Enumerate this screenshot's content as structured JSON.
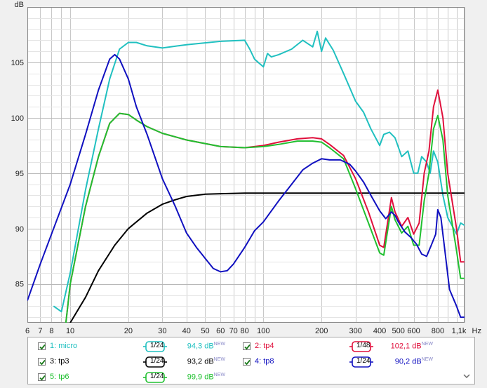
{
  "chart_data": {
    "type": "line",
    "xscale": "log",
    "xlim": [
      6,
      1100
    ],
    "ylim": [
      81.5,
      110
    ],
    "yunit": "dB",
    "xunit": "Hz",
    "yticks": [
      85,
      90,
      95,
      100,
      105
    ],
    "xticks": [
      {
        "v": 6,
        "label": "6"
      },
      {
        "v": 7,
        "label": "7"
      },
      {
        "v": 8,
        "label": "8"
      },
      {
        "v": 10,
        "label": "10"
      },
      {
        "v": 20,
        "label": "20"
      },
      {
        "v": 30,
        "label": "30"
      },
      {
        "v": 40,
        "label": "40"
      },
      {
        "v": 50,
        "label": "50"
      },
      {
        "v": 60,
        "label": "60"
      },
      {
        "v": 70,
        "label": "70"
      },
      {
        "v": 80,
        "label": "80"
      },
      {
        "v": 100,
        "label": "100"
      },
      {
        "v": 200,
        "label": "200"
      },
      {
        "v": 300,
        "label": "300"
      },
      {
        "v": 400,
        "label": "400"
      },
      {
        "v": 500,
        "label": "500"
      },
      {
        "v": 600,
        "label": "600"
      },
      {
        "v": 800,
        "label": "800"
      },
      {
        "v": 1100,
        "label": "1,1k"
      }
    ],
    "grid": true,
    "series": [
      {
        "name": "micro",
        "color": "#20c0c0",
        "x": [
          8.2,
          9,
          10,
          12,
          14,
          16,
          18,
          20,
          22,
          25,
          30,
          40,
          60,
          80,
          85,
          90,
          100,
          105,
          110,
          120,
          140,
          160,
          180,
          190,
          200,
          210,
          230,
          260,
          300,
          330,
          360,
          400,
          420,
          450,
          480,
          520,
          560,
          600,
          630,
          660,
          700,
          730,
          760,
          800,
          850,
          900,
          1000,
          1050,
          1100
        ],
        "y": [
          83,
          82.5,
          86,
          93.5,
          99,
          103.5,
          106.2,
          106.8,
          106.8,
          106.5,
          106.3,
          106.6,
          106.9,
          107,
          106.2,
          105.3,
          104.6,
          105.8,
          105.5,
          105.7,
          106.2,
          107,
          106.4,
          107.8,
          106,
          107.2,
          106.1,
          104,
          101.5,
          100.5,
          99,
          97.5,
          98.5,
          98.7,
          98.2,
          96.5,
          97,
          95,
          95,
          96.5,
          96,
          95,
          97,
          96,
          93,
          91,
          89.5,
          90.5,
          90.3
        ]
      },
      {
        "name": "tp4",
        "color": "#e0103c",
        "x": [
          9.5,
          10,
          12,
          14,
          16,
          18,
          20,
          22,
          25,
          30,
          40,
          60,
          80,
          100,
          120,
          150,
          180,
          200,
          220,
          260,
          300,
          350,
          400,
          420,
          460,
          480,
          520,
          560,
          600,
          640,
          680,
          720,
          760,
          800,
          850,
          900,
          1000,
          1050,
          1100
        ],
        "y": [
          81.5,
          85,
          92,
          96.5,
          99.5,
          100.4,
          100.3,
          99.8,
          99.2,
          98.6,
          98,
          97.4,
          97.3,
          97.5,
          97.8,
          98.1,
          98.2,
          98.1,
          97.6,
          96.6,
          94.5,
          91.5,
          88.5,
          88.3,
          92.8,
          91.5,
          90.2,
          91,
          89.5,
          90.5,
          95,
          97,
          101,
          102.5,
          100,
          95,
          90,
          87,
          87
        ]
      },
      {
        "name": "tp3",
        "color": "#000000",
        "x": [
          10,
          12,
          14,
          17,
          20,
          25,
          30,
          35,
          40,
          50,
          60,
          80,
          100,
          150,
          200,
          300,
          500,
          800,
          1100
        ],
        "y": [
          81.5,
          83.8,
          86.2,
          88.5,
          90,
          91.4,
          92.2,
          92.6,
          92.9,
          93.1,
          93.15,
          93.2,
          93.2,
          93.2,
          93.2,
          93.2,
          93.2,
          93.2,
          93.2
        ]
      },
      {
        "name": "tp8",
        "color": "#1010c0",
        "x": [
          6,
          7,
          8,
          10,
          12,
          14,
          16,
          17,
          18,
          20,
          22,
          25,
          30,
          35,
          40,
          45,
          50,
          55,
          60,
          65,
          70,
          80,
          90,
          100,
          120,
          140,
          160,
          180,
          200,
          220,
          250,
          280,
          300,
          330,
          360,
          400,
          430,
          460,
          480,
          500,
          540,
          580,
          620,
          660,
          700,
          740,
          780,
          800,
          830,
          870,
          920,
          1000,
          1050,
          1100
        ],
        "y": [
          83.5,
          86.8,
          89.5,
          94,
          98.5,
          102.5,
          105.3,
          105.7,
          105.3,
          103.5,
          101,
          98.5,
          94.5,
          92,
          89.6,
          88.3,
          87.3,
          86.4,
          86.1,
          86.2,
          86.8,
          88.3,
          89.8,
          90.6,
          92.5,
          94,
          95.3,
          95.9,
          96.3,
          96.2,
          96.2,
          95.8,
          95.2,
          94.2,
          93,
          91.6,
          90.9,
          91.5,
          91.2,
          90.6,
          89.7,
          89.2,
          88.6,
          87.7,
          87.5,
          88.5,
          89.5,
          91.7,
          91,
          88,
          84.5,
          83,
          82,
          82
        ]
      },
      {
        "name": "tp6",
        "color": "#20c030",
        "x": [
          9.5,
          10,
          12,
          14,
          16,
          18,
          20,
          22,
          25,
          30,
          40,
          60,
          80,
          100,
          120,
          150,
          180,
          200,
          220,
          260,
          300,
          350,
          400,
          420,
          460,
          480,
          520,
          560,
          600,
          640,
          680,
          720,
          760,
          800,
          850,
          900,
          1000,
          1050,
          1100
        ],
        "y": [
          81.5,
          85,
          92,
          96.5,
          99.5,
          100.4,
          100.3,
          99.8,
          99.2,
          98.6,
          98,
          97.4,
          97.3,
          97.4,
          97.6,
          97.9,
          97.9,
          97.8,
          97.3,
          96.3,
          93.6,
          90.5,
          87.8,
          87.6,
          92,
          90.8,
          89.6,
          90.2,
          88.5,
          88.5,
          92.5,
          95,
          99,
          100.2,
          98,
          93,
          88,
          85.5,
          85.5
        ]
      }
    ]
  },
  "axis": {
    "y_unit_label": "dB",
    "x_unit_label": "Hz"
  },
  "legend": {
    "items": [
      {
        "label": "1: micro",
        "smoothing": "1/24",
        "value": "94,3 dB",
        "new": "NEW",
        "color": "#20c0c0",
        "checked": true
      },
      {
        "label": "2: tp4",
        "smoothing": "1/48",
        "value": "102,1 dB",
        "new": "NEW",
        "color": "#e0103c",
        "checked": true
      },
      {
        "label": "3: tp3",
        "smoothing": "1/24",
        "value": "93,2 dB",
        "new": "NEW",
        "color": "#000000",
        "checked": true
      },
      {
        "label": "4: tp8",
        "smoothing": "1/24",
        "value": "90,2 dB",
        "new": "NEW",
        "color": "#1010c0",
        "checked": true
      },
      {
        "label": "5: tp6",
        "smoothing": "1/24",
        "value": "99,9 dB",
        "new": "NEW",
        "color": "#20c030",
        "checked": true
      }
    ]
  }
}
